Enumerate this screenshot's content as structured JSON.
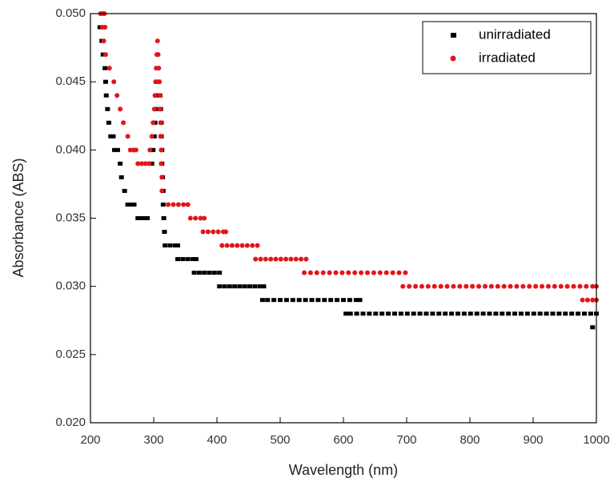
{
  "chart_data": {
    "type": "scatter",
    "x_label": "Wavelength (nm)",
    "y_label": "Absorbance (ABS)",
    "xlim": [
      200,
      1000
    ],
    "xticks": [
      200,
      300,
      400,
      500,
      600,
      700,
      800,
      900,
      1000
    ],
    "ylim": [
      0.02,
      0.05
    ],
    "yticks": [
      {
        "value": 0.02,
        "label": "0.020"
      },
      0.025,
      {
        "value": 0.03,
        "label": "0.030"
      },
      0.035,
      {
        "value": 0.04,
        "label": "0.040"
      },
      0.045,
      {
        "value": 0.05,
        "label": "0.050"
      }
    ],
    "legend": "top-right",
    "series": [
      {
        "name": "unirradiated",
        "color": "#000000",
        "marker": "square",
        "x": [
          215,
          218,
          220,
          223,
          224,
          225,
          227,
          229,
          232,
          236,
          238,
          243,
          247,
          249,
          254,
          259,
          264,
          269,
          275,
          280,
          285,
          290,
          297,
          299,
          301,
          302,
          303,
          304,
          305,
          308,
          310,
          311,
          312,
          312,
          313,
          313,
          314,
          315,
          315,
          316,
          317,
          318,
          326,
          334,
          338,
          338,
          346,
          354,
          362,
          367,
          364,
          372,
          380,
          388,
          396,
          404,
          404,
          412,
          420,
          428,
          436,
          444,
          452,
          460,
          468,
          474,
          472,
          480,
          490,
          500,
          510,
          520,
          530,
          540,
          550,
          560,
          570,
          580,
          590,
          600,
          610,
          620,
          626,
          604,
          611,
          621,
          631,
          641,
          651,
          661,
          671,
          681,
          691,
          701,
          711,
          721,
          731,
          741,
          751,
          761,
          771,
          781,
          791,
          801,
          811,
          821,
          831,
          841,
          851,
          861,
          871,
          881,
          891,
          901,
          911,
          921,
          931,
          941,
          951,
          961,
          971,
          981,
          991,
          1000,
          994
        ],
        "values": [
          0.049,
          0.048,
          0.047,
          0.046,
          0.045,
          0.044,
          0.043,
          0.042,
          0.041,
          0.041,
          0.04,
          0.04,
          0.039,
          0.038,
          0.037,
          0.036,
          0.036,
          0.036,
          0.035,
          0.035,
          0.035,
          0.035,
          0.039,
          0.04,
          0.041,
          0.042,
          0.043,
          0.044,
          0.045,
          0.045,
          0.044,
          0.043,
          0.042,
          0.041,
          0.04,
          0.039,
          0.038,
          0.037,
          0.036,
          0.035,
          0.034,
          0.033,
          0.033,
          0.033,
          0.033,
          0.032,
          0.032,
          0.032,
          0.032,
          0.032,
          0.031,
          0.031,
          0.031,
          0.031,
          0.031,
          0.031,
          0.03,
          0.03,
          0.03,
          0.03,
          0.03,
          0.03,
          0.03,
          0.03,
          0.03,
          0.03,
          0.029,
          0.029,
          0.029,
          0.029,
          0.029,
          0.029,
          0.029,
          0.029,
          0.029,
          0.029,
          0.029,
          0.029,
          0.029,
          0.029,
          0.029,
          0.029,
          0.029,
          0.028,
          0.028,
          0.028,
          0.028,
          0.028,
          0.028,
          0.028,
          0.028,
          0.028,
          0.028,
          0.028,
          0.028,
          0.028,
          0.028,
          0.028,
          0.028,
          0.028,
          0.028,
          0.028,
          0.028,
          0.028,
          0.028,
          0.028,
          0.028,
          0.028,
          0.028,
          0.028,
          0.028,
          0.028,
          0.028,
          0.028,
          0.028,
          0.028,
          0.028,
          0.028,
          0.028,
          0.028,
          0.028,
          0.028,
          0.028,
          0.028,
          0.027
        ]
      },
      {
        "name": "irradiated",
        "color": "#e3151a",
        "marker": "circle",
        "x": [
          216,
          220,
          222,
          219,
          223,
          221,
          224,
          230,
          237,
          242,
          247,
          252,
          259,
          263,
          268,
          272,
          275,
          281,
          287,
          293,
          294,
          297,
          299,
          301,
          302,
          303,
          304,
          305,
          306,
          307,
          308,
          309,
          310,
          310,
          311,
          311,
          312,
          312,
          313,
          313,
          323,
          331,
          339,
          347,
          354,
          358,
          366,
          374,
          380,
          378,
          386,
          394,
          402,
          410,
          414,
          408,
          416,
          424,
          432,
          440,
          448,
          456,
          464,
          461,
          469,
          477,
          485,
          493,
          501,
          509,
          517,
          525,
          533,
          541,
          538,
          548,
          558,
          568,
          578,
          588,
          598,
          608,
          618,
          628,
          638,
          648,
          658,
          668,
          678,
          688,
          698,
          694,
          704,
          714,
          724,
          734,
          744,
          754,
          764,
          774,
          784,
          794,
          804,
          814,
          824,
          834,
          844,
          854,
          864,
          874,
          884,
          894,
          904,
          914,
          924,
          934,
          944,
          954,
          964,
          974,
          984,
          994,
          1000,
          978,
          986,
          994,
          1000
        ],
        "values": [
          0.05,
          0.05,
          0.05,
          0.049,
          0.049,
          0.048,
          0.047,
          0.046,
          0.045,
          0.044,
          0.043,
          0.042,
          0.041,
          0.04,
          0.04,
          0.04,
          0.039,
          0.039,
          0.039,
          0.039,
          0.04,
          0.041,
          0.042,
          0.043,
          0.044,
          0.045,
          0.046,
          0.047,
          0.048,
          0.047,
          0.046,
          0.045,
          0.044,
          0.043,
          0.042,
          0.041,
          0.04,
          0.039,
          0.038,
          0.037,
          0.036,
          0.036,
          0.036,
          0.036,
          0.036,
          0.035,
          0.035,
          0.035,
          0.035,
          0.034,
          0.034,
          0.034,
          0.034,
          0.034,
          0.034,
          0.033,
          0.033,
          0.033,
          0.033,
          0.033,
          0.033,
          0.033,
          0.033,
          0.032,
          0.032,
          0.032,
          0.032,
          0.032,
          0.032,
          0.032,
          0.032,
          0.032,
          0.032,
          0.032,
          0.031,
          0.031,
          0.031,
          0.031,
          0.031,
          0.031,
          0.031,
          0.031,
          0.031,
          0.031,
          0.031,
          0.031,
          0.031,
          0.031,
          0.031,
          0.031,
          0.031,
          0.03,
          0.03,
          0.03,
          0.03,
          0.03,
          0.03,
          0.03,
          0.03,
          0.03,
          0.03,
          0.03,
          0.03,
          0.03,
          0.03,
          0.03,
          0.03,
          0.03,
          0.03,
          0.03,
          0.03,
          0.03,
          0.03,
          0.03,
          0.03,
          0.03,
          0.03,
          0.03,
          0.03,
          0.03,
          0.03,
          0.03,
          0.03,
          0.029,
          0.029,
          0.029,
          0.029
        ]
      }
    ]
  }
}
